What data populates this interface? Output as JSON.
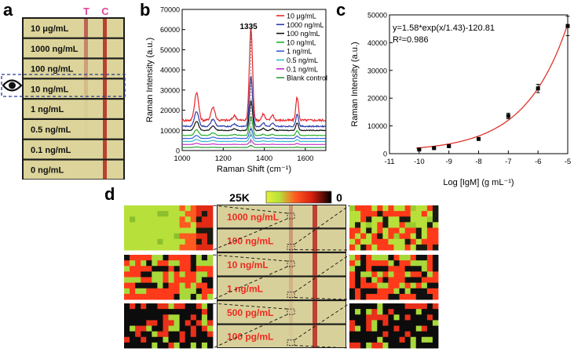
{
  "panels": {
    "a": "a",
    "b": "b",
    "c": "c",
    "d": "d"
  },
  "panel_a": {
    "line_labels": {
      "t": "T",
      "c": "C"
    },
    "strips": [
      "10 μg/mL",
      "1000 ng/mL",
      "100 ng/mL",
      "10 ng/mL",
      "1 ng/mL",
      "0.5 ng/mL",
      "0.1 ng/mL",
      "0 ng/mL"
    ],
    "t_intensity": [
      0.85,
      0.6,
      0.4,
      0.18,
      0.05,
      0.02,
      0.0,
      0.0
    ],
    "highlighted_strip": "10 ng/mL",
    "colors": {
      "strip": "#dcd49a",
      "c_line": "#b8322a",
      "t_line": "#b8504a",
      "letters": "#e0479a"
    }
  },
  "chart_data": [
    {
      "type": "line",
      "title": "",
      "xlabel": "Raman Shift (cm⁻¹)",
      "ylabel": "Raman Intensity (a.u.)",
      "xlim": [
        1000,
        1700
      ],
      "ylim": [
        0,
        70000
      ],
      "xticks": [
        1000,
        1200,
        1400,
        1600
      ],
      "yticks": [
        0,
        10000,
        20000,
        30000,
        40000,
        50000,
        60000,
        70000
      ],
      "peak_label": "1335",
      "peaks": [
        {
          "pos": 1070,
          "w": 14,
          "rel": 0.3
        },
        {
          "pos": 1150,
          "w": 14,
          "rel": 0.14
        },
        {
          "pos": 1255,
          "w": 12,
          "rel": 0.05
        },
        {
          "pos": 1335,
          "w": 11,
          "rel": 1.0
        },
        {
          "pos": 1395,
          "w": 10,
          "rel": 0.07
        },
        {
          "pos": 1440,
          "w": 10,
          "rel": 0.06
        },
        {
          "pos": 1560,
          "w": 9,
          "rel": 0.25
        }
      ],
      "series": [
        {
          "name": "10 μg/mL",
          "color": "#e8262b",
          "baseline": 15000,
          "peak": 61000
        },
        {
          "name": "1000 ng/mL",
          "color": "#2b3aa8",
          "baseline": 12000,
          "peak": 37000
        },
        {
          "name": "100 ng/mL",
          "color": "#111111",
          "baseline": 10000,
          "peak": 25000
        },
        {
          "name": "10 ng/mL",
          "color": "#27b02a",
          "baseline": 7500,
          "peak": 17000
        },
        {
          "name": "1 ng/mL",
          "color": "#3a5fd8",
          "baseline": 6000,
          "peak": 11000
        },
        {
          "name": "0.5 ng/mL",
          "color": "#38b8c8",
          "baseline": 4500,
          "peak": 8000
        },
        {
          "name": "0.1 ng/mL",
          "color": "#c030c8",
          "baseline": 3000,
          "peak": 5000
        },
        {
          "name": "Blank control",
          "color": "#2e9e3a",
          "baseline": 1500,
          "peak": 2500
        }
      ]
    },
    {
      "type": "scatter",
      "xlabel": "Log [IgM] (g mL⁻¹)",
      "ylabel": "Raman Intensity (a.u.)",
      "xlim": [
        -11,
        -5
      ],
      "ylim": [
        0,
        50000
      ],
      "xticks": [
        -11,
        -10,
        -9,
        -8,
        -7,
        -6,
        -5
      ],
      "yticks": [
        0,
        10000,
        20000,
        30000,
        40000,
        50000
      ],
      "x": [
        -10,
        -9.5,
        -9,
        -8,
        -7,
        -6,
        -5
      ],
      "y": [
        1500,
        2000,
        2700,
        5300,
        13600,
        23500,
        46000
      ],
      "err": [
        200,
        300,
        300,
        500,
        1000,
        1500,
        3500
      ],
      "fit_color": "#e0342a",
      "equation": "y=1.58*exp(x/1.43)-120.81",
      "r2": "R²=0.986"
    }
  ],
  "panel_d": {
    "colorbar": {
      "max_label": "25K",
      "min_label": "0"
    },
    "strip_labels": [
      "1000 ng/mL",
      "100 ng/mL",
      "10 ng/mL",
      "1 ng/mL",
      "500 pg/mL",
      "100 pg/mL"
    ],
    "label_color": "#ee2a22"
  }
}
